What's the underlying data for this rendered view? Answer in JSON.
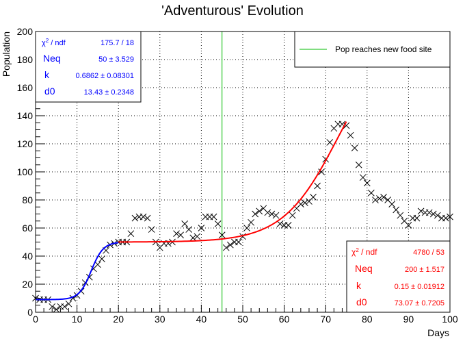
{
  "chart_data": {
    "type": "scatter",
    "title": "'Adventurous' Evolution",
    "xlabel": "Days",
    "ylabel": "Population",
    "xlim": [
      0,
      100
    ],
    "ylim": [
      0,
      200
    ],
    "x_ticks": [
      0,
      10,
      20,
      30,
      40,
      50,
      60,
      70,
      80,
      90,
      100
    ],
    "y_ticks": [
      0,
      20,
      40,
      60,
      80,
      100,
      120,
      140,
      160,
      180,
      200
    ],
    "grid": true,
    "marker": "x",
    "points": {
      "x": [
        0,
        1,
        2,
        3,
        4,
        5,
        6,
        7,
        8,
        9,
        10,
        11,
        12,
        13,
        14,
        15,
        16,
        17,
        18,
        19,
        20,
        21,
        22,
        23,
        24,
        25,
        26,
        27,
        28,
        29,
        30,
        31,
        32,
        33,
        34,
        35,
        36,
        37,
        38,
        39,
        40,
        41,
        42,
        43,
        44,
        45,
        46,
        47,
        48,
        49,
        50,
        51,
        52,
        53,
        54,
        55,
        56,
        57,
        58,
        59,
        60,
        61,
        62,
        63,
        64,
        65,
        66,
        67,
        68,
        69,
        70,
        71,
        72,
        73,
        74,
        75,
        76,
        77,
        78,
        79,
        80,
        81,
        82,
        83,
        84,
        85,
        86,
        87,
        88,
        89,
        90,
        91,
        92,
        93,
        94,
        95,
        96,
        97,
        98,
        99,
        100
      ],
      "y": [
        10,
        9,
        9,
        9,
        4,
        2,
        4,
        4,
        6,
        10,
        12,
        15,
        21,
        25,
        31,
        34,
        38,
        44,
        48,
        49,
        50,
        50,
        50,
        56,
        67,
        68,
        68,
        67,
        59,
        50,
        46,
        49,
        49,
        50,
        56,
        55,
        63,
        59,
        53,
        54,
        60,
        68,
        68,
        68,
        63,
        55,
        46,
        48,
        50,
        50,
        54,
        60,
        64,
        70,
        72,
        74,
        71,
        70,
        69,
        63,
        62,
        62,
        69,
        74,
        77,
        78,
        79,
        82,
        90,
        100,
        109,
        121,
        131,
        134,
        134,
        133,
        126,
        117,
        105,
        96,
        92,
        85,
        80,
        81,
        82,
        80,
        77,
        73,
        69,
        65,
        62,
        67,
        67,
        72,
        71,
        71,
        70,
        69,
        67,
        67,
        68
      ]
    },
    "fits": [
      {
        "name": "fit-1",
        "color": "#0000ff",
        "x_range": [
          0,
          20
        ],
        "params": {
          "Neq": 50,
          "k": 0.6862,
          "d0": 13.43,
          "base": 9
        }
      },
      {
        "name": "fit-2",
        "color": "#ff0000",
        "x_range": [
          20,
          75
        ],
        "params": {
          "Neq": 200,
          "k": 0.15,
          "d0": 73.07,
          "base": 50
        }
      }
    ],
    "vline": {
      "x": 45,
      "color": "#00bb00"
    },
    "legend": {
      "position": "top-right",
      "entries": [
        {
          "label": "Pop reaches new food site",
          "color": "#00bb00"
        }
      ]
    }
  },
  "stats_boxes": [
    {
      "color": "#0000ff",
      "position": "top-left",
      "rows": [
        {
          "label": "χ² / ndf",
          "value": "175.7 / 18"
        },
        {
          "label": "Neq",
          "value": "50 ± 3.529"
        },
        {
          "label": "k",
          "value": "0.6862 ± 0.08301"
        },
        {
          "label": "d0",
          "value": "13.43 ± 0.2348"
        }
      ]
    },
    {
      "color": "#ff0000",
      "position": "bottom-right",
      "rows": [
        {
          "label": "χ² / ndf",
          "value": "4780 / 53"
        },
        {
          "label": "Neq",
          "value": "200 ± 1.517"
        },
        {
          "label": "k",
          "value": "0.15 ± 0.01912"
        },
        {
          "label": "d0",
          "value": "73.07 ± 0.7205"
        }
      ]
    }
  ]
}
